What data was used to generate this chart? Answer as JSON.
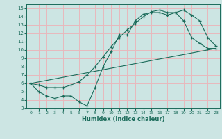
{
  "title": "",
  "xlabel": "Humidex (Indice chaleur)",
  "xlim": [
    -0.5,
    23.5
  ],
  "ylim": [
    3,
    15.5
  ],
  "xticks": [
    0,
    1,
    2,
    3,
    4,
    5,
    6,
    7,
    8,
    9,
    10,
    11,
    12,
    13,
    14,
    15,
    16,
    17,
    18,
    19,
    20,
    21,
    22,
    23
  ],
  "yticks": [
    3,
    4,
    5,
    6,
    7,
    8,
    9,
    10,
    11,
    12,
    13,
    14,
    15
  ],
  "bg_color": "#cce5e3",
  "grid_color": "#e8b8bc",
  "line_color": "#1a6b5a",
  "line1_x": [
    0,
    1,
    2,
    3,
    4,
    5,
    6,
    7,
    8,
    9,
    10,
    11,
    12,
    13,
    14,
    15,
    16,
    17,
    18,
    19,
    20,
    21,
    22,
    23
  ],
  "line1_y": [
    6.0,
    5.8,
    5.5,
    5.5,
    5.5,
    5.8,
    6.2,
    7.0,
    8.0,
    9.2,
    10.4,
    11.5,
    12.4,
    13.2,
    14.0,
    14.6,
    14.8,
    14.5,
    14.5,
    14.8,
    14.2,
    13.5,
    11.5,
    10.5
  ],
  "line2_x": [
    0,
    1,
    2,
    3,
    4,
    5,
    6,
    7,
    8,
    9,
    10,
    11,
    12,
    13,
    14,
    15,
    16,
    17,
    18,
    19,
    20,
    21,
    22,
    23
  ],
  "line2_y": [
    6.0,
    5.0,
    4.5,
    4.2,
    4.5,
    4.5,
    3.8,
    3.3,
    5.5,
    8.0,
    9.8,
    11.8,
    11.8,
    13.5,
    14.3,
    14.5,
    14.5,
    14.2,
    14.5,
    13.5,
    11.5,
    10.8,
    10.2,
    10.2
  ],
  "line3_x": [
    0,
    23
  ],
  "line3_y": [
    6.0,
    10.2
  ]
}
